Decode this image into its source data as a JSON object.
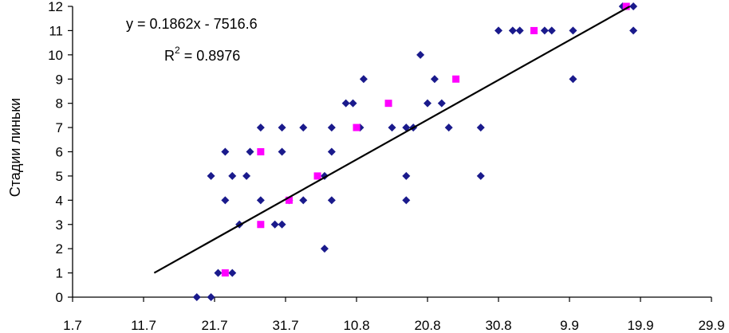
{
  "chart_data": {
    "type": "scatter",
    "ylabel": "Стадии линьки",
    "ylim": [
      0,
      12
    ],
    "yticks": [
      "0",
      "1",
      "2",
      "3",
      "4",
      "5",
      "6",
      "7",
      "8",
      "9",
      "10",
      "11",
      "12"
    ],
    "xlim": [
      0,
      9
    ],
    "xticks": [
      "1.7",
      "11.7",
      "21.7",
      "31.7",
      "10.8",
      "20.8",
      "30.8",
      "9.9",
      "19.9",
      "29.9"
    ],
    "grid": false,
    "legend": "none",
    "annotations": {
      "equation": "y = 0.1862x - 7516.6",
      "r2_prefix": "R",
      "r2_exp": "2",
      "r2_suffix": " = 0.8976"
    },
    "trendline": {
      "x": [
        1.15,
        7.85
      ],
      "y": [
        1,
        12
      ]
    },
    "series": [
      {
        "marker": "diamond",
        "color": "#1a1a8c",
        "points": [
          [
            1.75,
            0
          ],
          [
            1.95,
            0
          ],
          [
            1.95,
            5
          ],
          [
            2.05,
            1
          ],
          [
            2.15,
            6
          ],
          [
            2.15,
            4
          ],
          [
            2.25,
            1
          ],
          [
            2.25,
            5
          ],
          [
            2.35,
            3
          ],
          [
            2.45,
            5
          ],
          [
            2.5,
            6
          ],
          [
            2.65,
            7
          ],
          [
            2.65,
            4
          ],
          [
            2.85,
            3
          ],
          [
            2.95,
            7
          ],
          [
            2.95,
            6
          ],
          [
            2.95,
            3
          ],
          [
            3.05,
            4
          ],
          [
            3.25,
            7
          ],
          [
            3.25,
            4
          ],
          [
            3.55,
            2
          ],
          [
            3.55,
            5
          ],
          [
            3.65,
            7
          ],
          [
            3.65,
            6
          ],
          [
            3.65,
            4
          ],
          [
            3.85,
            8
          ],
          [
            3.95,
            8
          ],
          [
            4.1,
            9
          ],
          [
            4.05,
            7
          ],
          [
            4.5,
            7
          ],
          [
            4.7,
            7
          ],
          [
            4.7,
            5
          ],
          [
            4.7,
            4
          ],
          [
            4.8,
            7
          ],
          [
            4.9,
            10
          ],
          [
            5.0,
            8
          ],
          [
            5.1,
            9
          ],
          [
            5.2,
            8
          ],
          [
            5.3,
            7
          ],
          [
            5.75,
            7
          ],
          [
            5.75,
            5
          ],
          [
            6.0,
            11
          ],
          [
            6.2,
            11
          ],
          [
            6.3,
            11
          ],
          [
            6.65,
            11
          ],
          [
            6.75,
            11
          ],
          [
            7.05,
            11
          ],
          [
            7.05,
            9
          ],
          [
            7.75,
            12
          ],
          [
            7.9,
            12
          ],
          [
            7.9,
            11
          ]
        ]
      },
      {
        "marker": "square",
        "color": "#ff00ff",
        "points": [
          [
            2.15,
            1
          ],
          [
            2.65,
            6
          ],
          [
            2.65,
            3
          ],
          [
            3.05,
            4
          ],
          [
            3.45,
            5
          ],
          [
            4.0,
            7
          ],
          [
            4.45,
            8
          ],
          [
            5.4,
            9
          ],
          [
            6.5,
            11
          ],
          [
            7.8,
            12
          ]
        ]
      }
    ]
  }
}
